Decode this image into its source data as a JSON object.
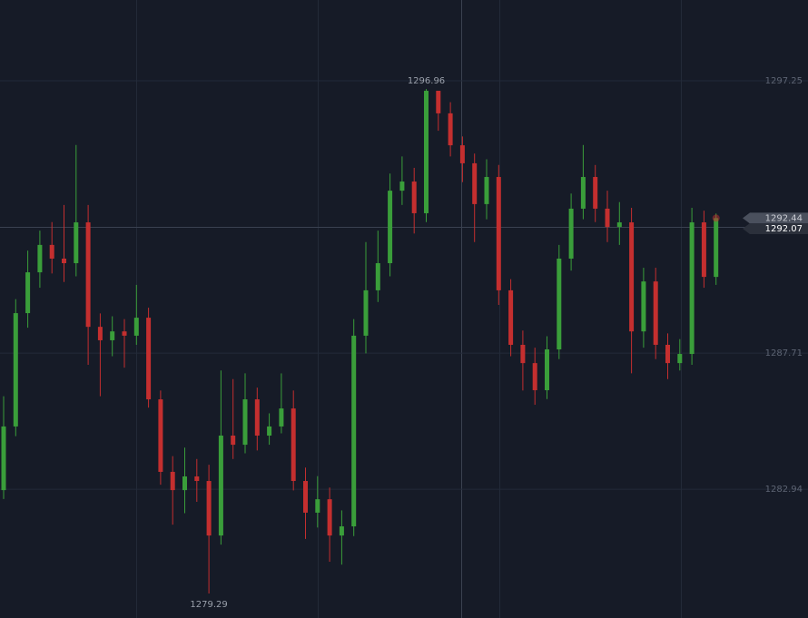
{
  "chart_data": {
    "type": "candlestick",
    "open": [
      1282.91,
      1285.14,
      1289.11,
      1290.54,
      1291.5,
      1291.02,
      1290.86,
      1292.29,
      1288.63,
      1288.16,
      1288.47,
      1288.32,
      1288.95,
      1286.09,
      1283.55,
      1282.91,
      1283.39,
      1283.23,
      1281.32,
      1284.82,
      1284.5,
      1286.09,
      1284.82,
      1285.14,
      1285.77,
      1283.23,
      1282.12,
      1282.59,
      1281.32,
      1281.64,
      1288.32,
      1289.91,
      1290.86,
      1293.4,
      1293.72,
      1292.61,
      1296.9,
      1296.11,
      1294.99,
      1294.36,
      1292.93,
      1293.88,
      1289.91,
      1288.0,
      1287.36,
      1286.41,
      1287.84,
      1291.02,
      1292.77,
      1293.88,
      1292.77,
      1292.13,
      1292.29,
      1288.47,
      1290.22,
      1288.0,
      1287.36,
      1287.68,
      1292.29,
      1290.38
    ],
    "high": [
      1286.2,
      1289.6,
      1291.3,
      1292.0,
      1292.3,
      1292.9,
      1295.0,
      1292.9,
      1289.1,
      1289.0,
      1288.9,
      1290.1,
      1289.3,
      1286.4,
      1284.1,
      1284.4,
      1284.0,
      1283.8,
      1287.1,
      1286.8,
      1287.0,
      1286.5,
      1285.6,
      1287.0,
      1286.4,
      1283.7,
      1283.4,
      1283.0,
      1282.2,
      1288.9,
      1291.6,
      1292.0,
      1294.0,
      1294.6,
      1294.2,
      1296.96,
      1296.7,
      1296.5,
      1295.3,
      1294.7,
      1294.5,
      1294.3,
      1290.3,
      1288.5,
      1287.9,
      1288.3,
      1291.5,
      1293.3,
      1295.0,
      1294.3,
      1293.4,
      1293.0,
      1292.8,
      1290.7,
      1290.7,
      1288.4,
      1288.2,
      1292.8,
      1292.7,
      1292.6
    ],
    "low": [
      1282.6,
      1284.8,
      1288.6,
      1290.0,
      1290.5,
      1290.2,
      1290.4,
      1287.3,
      1286.2,
      1287.6,
      1287.2,
      1288.0,
      1285.8,
      1283.1,
      1281.7,
      1282.1,
      1282.5,
      1279.29,
      1281.0,
      1284.0,
      1284.2,
      1284.3,
      1284.5,
      1284.9,
      1282.9,
      1281.2,
      1281.6,
      1280.4,
      1280.3,
      1281.3,
      1287.7,
      1289.5,
      1290.4,
      1292.9,
      1291.9,
      1292.3,
      1295.5,
      1294.6,
      1293.7,
      1291.6,
      1292.4,
      1289.4,
      1287.6,
      1286.4,
      1285.9,
      1286.1,
      1287.5,
      1290.6,
      1292.4,
      1292.3,
      1291.6,
      1291.5,
      1287.0,
      1287.9,
      1287.5,
      1286.8,
      1287.1,
      1287.3,
      1290.0,
      1290.1
    ],
    "close": [
      1285.14,
      1289.11,
      1290.54,
      1291.5,
      1291.02,
      1290.86,
      1292.29,
      1288.63,
      1288.16,
      1288.47,
      1288.32,
      1288.95,
      1286.09,
      1283.55,
      1282.91,
      1283.39,
      1283.23,
      1281.32,
      1284.82,
      1284.5,
      1286.09,
      1284.82,
      1285.14,
      1285.77,
      1283.23,
      1282.12,
      1282.59,
      1281.32,
      1281.64,
      1288.32,
      1289.91,
      1290.86,
      1293.4,
      1293.72,
      1292.61,
      1296.9,
      1296.11,
      1294.99,
      1294.36,
      1292.93,
      1293.88,
      1289.91,
      1288.0,
      1287.36,
      1286.41,
      1287.84,
      1291.02,
      1292.77,
      1293.88,
      1292.77,
      1292.13,
      1292.29,
      1288.47,
      1290.22,
      1288.0,
      1287.36,
      1287.68,
      1292.29,
      1290.38,
      1292.44
    ],
    "up_color": "#3a9e3a",
    "down_color": "#c42f2f",
    "ylim": [
      1278.43,
      1300.08
    ],
    "yticks": [
      1297.25,
      1287.71,
      1282.94
    ],
    "grid": true,
    "price_labels": [
      1292.44,
      1292.07
    ]
  }
}
